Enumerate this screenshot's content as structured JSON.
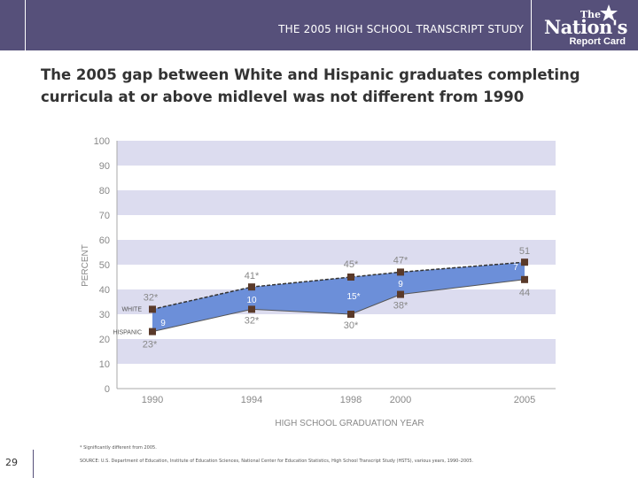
{
  "header": {
    "title": "THE 2005 HIGH SCHOOL TRANSCRIPT STUDY"
  },
  "logo": {
    "line1": "The",
    "line2": "Nation's",
    "line3": "Report Card"
  },
  "slide": {
    "title": "The 2005 gap between White and Hispanic graduates completing curricula at or above midlevel was not different from 1990",
    "page_number": "29"
  },
  "footnote": "* Significantly different from 2005.",
  "source": "SOURCE: U.S. Department of Education, Institute of Education Sciences, National Center for Education Statistics, High School Transcript Study (HSTS), various years, 1990–2005.",
  "colors": {
    "header": "#56507a",
    "band": "#dcdcef",
    "area": "#6c8fd9",
    "marker": "#5a3a2a",
    "text_gray": "#888888"
  },
  "chart_data": {
    "type": "area",
    "xlabel": "HIGH SCHOOL GRADUATION YEAR",
    "ylabel": "PERCENT",
    "ylim": [
      0,
      100
    ],
    "yticks": [
      0,
      10,
      20,
      30,
      40,
      50,
      60,
      70,
      80,
      90,
      100
    ],
    "xlim": [
      1990,
      2005
    ],
    "x": [
      1990,
      1994,
      1998,
      2000,
      2005
    ],
    "series": [
      {
        "name": "WHITE",
        "values": [
          32,
          41,
          45,
          47,
          51
        ],
        "labels": [
          "32*",
          "41*",
          "45*",
          "47*",
          "51"
        ]
      },
      {
        "name": "HISPANIC",
        "values": [
          23,
          32,
          30,
          38,
          44
        ],
        "labels": [
          "23*",
          "32*",
          "30*",
          "38*",
          "44"
        ]
      }
    ],
    "gaps": [
      {
        "x": 1990,
        "label": "9"
      },
      {
        "x": 1994,
        "label": "10"
      },
      {
        "x": 1998,
        "label": "15*"
      },
      {
        "x": 2000,
        "label": "9"
      },
      {
        "x": 2005,
        "label": "7"
      }
    ],
    "grid": "alternating horizontal bands"
  }
}
